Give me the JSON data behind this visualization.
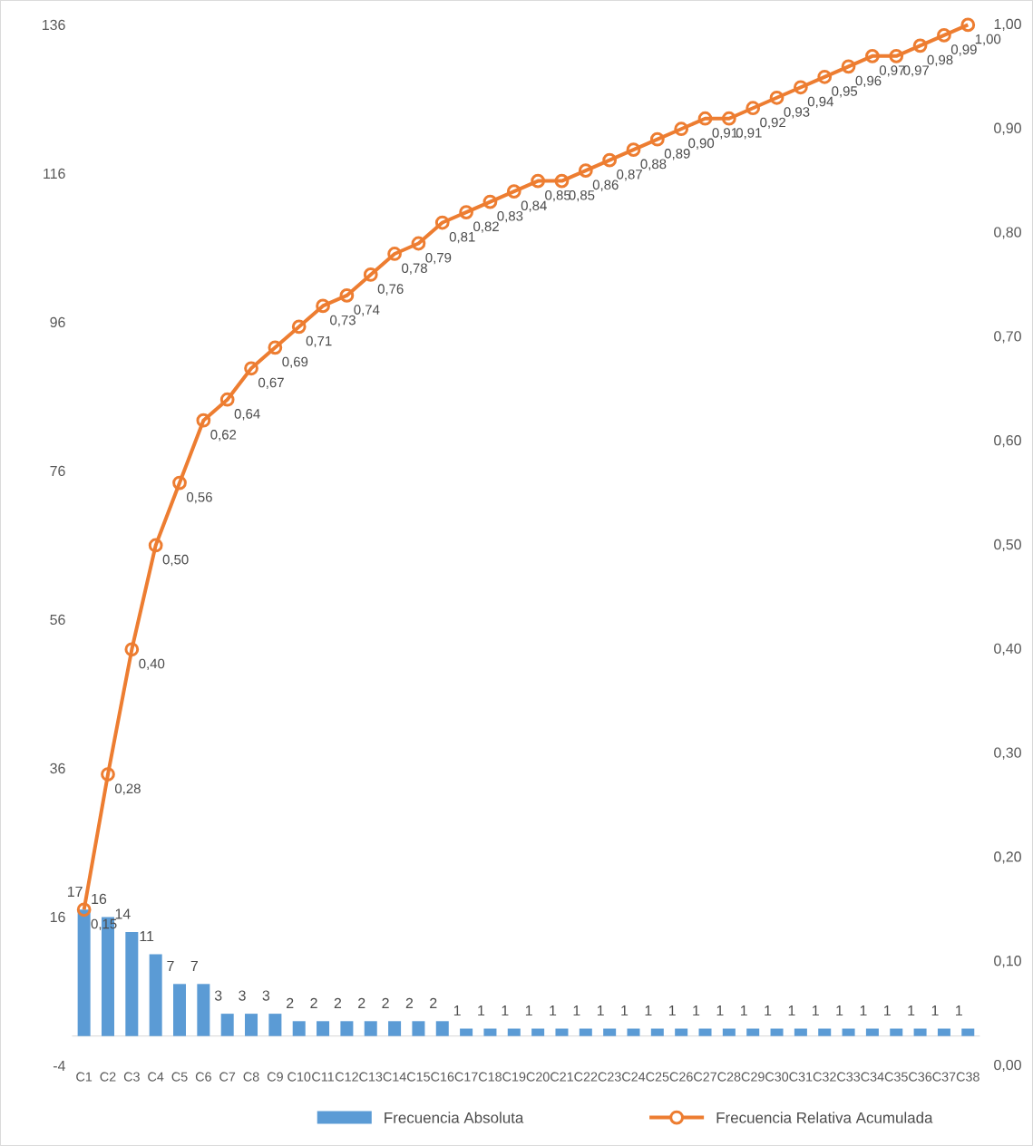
{
  "chart_data": {
    "type": "bar",
    "categories": [
      "C1",
      "C2",
      "C3",
      "C4",
      "C5",
      "C6",
      "C7",
      "C8",
      "C9",
      "C10",
      "C11",
      "C12",
      "C13",
      "C14",
      "C15",
      "C16",
      "C17",
      "C18",
      "C19",
      "C20",
      "C21",
      "C22",
      "C23",
      "C24",
      "C25",
      "C26",
      "C27",
      "C28",
      "C29",
      "C30",
      "C31",
      "C32",
      "C33",
      "C34",
      "C35",
      "C36",
      "C37",
      "C38"
    ],
    "series": [
      {
        "name": "Frecuencia Absoluta",
        "color": "#5b9bd5",
        "values": [
          17,
          16,
          14,
          11,
          7,
          7,
          3,
          3,
          3,
          2,
          2,
          2,
          2,
          2,
          2,
          2,
          1,
          1,
          1,
          1,
          1,
          1,
          1,
          1,
          1,
          1,
          1,
          1,
          1,
          1,
          1,
          1,
          1,
          1,
          1,
          1,
          1,
          1
        ],
        "value_labels": [
          "17",
          "16",
          "14",
          "11",
          "7",
          "7",
          "3",
          "3",
          "3",
          "2",
          "2",
          "2",
          "2",
          "2",
          "2",
          "2",
          "1",
          "1",
          "1",
          "1",
          "1",
          "1",
          "1",
          "1",
          "1",
          "1",
          "1",
          "1",
          "1",
          "1",
          "1",
          "1",
          "1",
          "1",
          "1",
          "1",
          "1",
          "1"
        ]
      },
      {
        "name": "Frecuencia Relativa Acumulada",
        "type": "line",
        "axis": "y2",
        "color": "#ed7d31",
        "marker": "circle",
        "values": [
          0.15,
          0.28,
          0.4,
          0.5,
          0.56,
          0.62,
          0.64,
          0.67,
          0.69,
          0.71,
          0.73,
          0.74,
          0.76,
          0.78,
          0.79,
          0.81,
          0.82,
          0.83,
          0.84,
          0.85,
          0.85,
          0.86,
          0.87,
          0.88,
          0.89,
          0.9,
          0.91,
          0.91,
          0.92,
          0.93,
          0.94,
          0.95,
          0.96,
          0.97,
          0.97,
          0.98,
          0.99,
          1.0
        ],
        "value_labels": [
          "0,15",
          "0,28",
          "0,40",
          "0,50",
          "0,56",
          "0,62",
          "0,64",
          "0,67",
          "0,69",
          "0,71",
          "0,73",
          "0,74",
          "0,76",
          "0,78",
          "0,79",
          "0,81",
          "0,82",
          "0,83",
          "0,84",
          "0,85",
          "0,85",
          "0,86",
          "0,87",
          "0,88",
          "0,89",
          "0,90",
          "0,91",
          "0,91",
          "0,92",
          "0,93",
          "0,94",
          "0,95",
          "0,96",
          "0,97",
          "0,97",
          "0,98",
          "0,99",
          "1,00"
        ]
      }
    ],
    "ylim": [
      -4,
      136
    ],
    "yticks": [
      -4,
      16,
      36,
      56,
      76,
      96,
      116,
      136
    ],
    "y2lim": [
      0,
      1
    ],
    "y2ticks": [
      {
        "value": 0,
        "label": "0,00"
      },
      {
        "value": 0.1,
        "label": "0,10"
      },
      {
        "value": 0.2,
        "label": "0,20"
      },
      {
        "value": 0.3,
        "label": "0,30"
      },
      {
        "value": 0.4,
        "label": "0,40"
      },
      {
        "value": 0.5,
        "label": "0,50"
      },
      {
        "value": 0.6,
        "label": "0,60"
      },
      {
        "value": 0.7,
        "label": "0,70"
      },
      {
        "value": 0.8,
        "label": "0,80"
      },
      {
        "value": 0.9,
        "label": "0,90"
      },
      {
        "value": 1.0,
        "label": "1,00"
      }
    ],
    "legend": "bottom",
    "grid": false
  }
}
